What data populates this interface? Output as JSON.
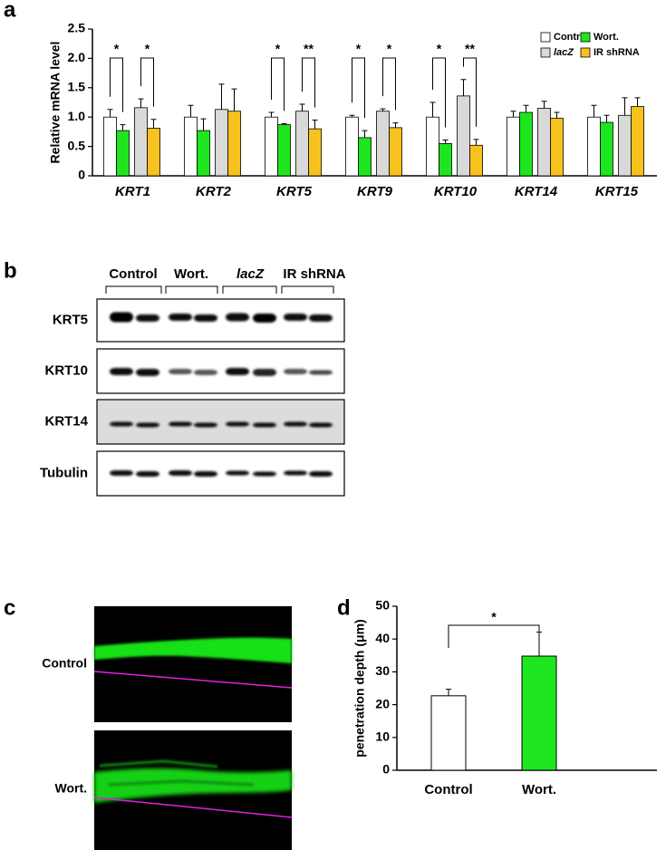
{
  "panel_labels": [
    "a",
    "b",
    "c",
    "d"
  ],
  "chart_data": [
    {
      "type": "bar",
      "y_label": "Relative mRNA level",
      "categories": [
        "KRT1",
        "KRT2",
        "KRT5",
        "KRT9",
        "KRT10",
        "KRT14",
        "KRT15"
      ],
      "series": [
        {
          "name": "Control",
          "color": "#ffffff",
          "values": [
            1.0,
            1.0,
            1.0,
            1.0,
            1.0,
            1.0,
            1.0
          ],
          "errors": [
            0.13,
            0.2,
            0.08,
            0.03,
            0.25,
            0.1,
            0.2
          ]
        },
        {
          "name": "Wort.",
          "color": "#1ee61e",
          "values": [
            0.77,
            0.77,
            0.87,
            0.65,
            0.55,
            1.08,
            0.91
          ],
          "errors": [
            0.1,
            0.2,
            0.02,
            0.12,
            0.06,
            0.12,
            0.12
          ]
        },
        {
          "name": "lacZ",
          "color": "#d9d9d9",
          "values": [
            1.16,
            1.13,
            1.1,
            1.1,
            1.36,
            1.15,
            1.03
          ],
          "errors": [
            0.15,
            0.43,
            0.12,
            0.04,
            0.28,
            0.12,
            0.3
          ]
        },
        {
          "name": "IR shRNA",
          "color": "#f7c21d",
          "values": [
            0.81,
            1.1,
            0.8,
            0.82,
            0.52,
            0.98,
            1.18
          ],
          "errors": [
            0.15,
            0.38,
            0.15,
            0.08,
            0.1,
            0.1,
            0.15
          ]
        }
      ],
      "significance": [
        "*",
        "*",
        "*",
        "**",
        "*",
        "*",
        "*",
        "**"
      ],
      "ylim": [
        0,
        2.5
      ],
      "yticks": [
        0,
        0.5,
        {
          "value": 1,
          "label": "1.0"
        },
        1.5,
        {
          "value": 2,
          "label": "2.0"
        },
        2.5
      ],
      "legend": "upper right"
    },
    {
      "type": "bar",
      "y_label": "penetration depth (μm)",
      "categories": [
        "Control",
        "Wort."
      ],
      "values": [
        22.7,
        34.8
      ],
      "errors": [
        2.0,
        7.3
      ],
      "colors": [
        "#ffffff",
        "#1ee61e"
      ],
      "significance": [
        "*"
      ],
      "ylim": [
        0,
        50
      ],
      "yticks": [
        0,
        10,
        20,
        30,
        40,
        50
      ]
    }
  ],
  "blot": {
    "groups": [
      "Control",
      "Wort.",
      "lacZ",
      "IR shRNA"
    ],
    "rows": [
      "KRT5",
      "KRT10",
      "KRT14",
      "Tubulin"
    ]
  },
  "images": {
    "labels": [
      "Control",
      "Wort."
    ]
  }
}
